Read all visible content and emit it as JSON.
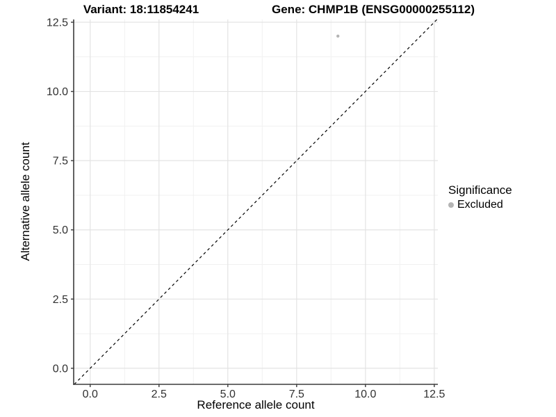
{
  "figure": {
    "title_left": "Variant: 18:11854241",
    "title_right": "Gene: CHMP1B (ENSG00000255112)"
  },
  "chart_data": {
    "type": "scatter",
    "title": "Variant: 18:11854241          Gene: CHMP1B (ENSG00000255112)",
    "xlabel": "Reference allele count",
    "ylabel": "Alternative allele count",
    "xlim": [
      -0.6,
      12.63
    ],
    "ylim": [
      -0.58,
      12.6
    ],
    "x_major_ticks": [
      0,
      2.5,
      5,
      7.5,
      10,
      12.5
    ],
    "x_tick_labels": [
      "0.0",
      "2.5",
      "5.0",
      "7.5",
      "10.0",
      "12.5"
    ],
    "y_major_ticks": [
      0,
      2.5,
      5,
      7.5,
      10,
      12.5
    ],
    "y_tick_labels": [
      "0.0",
      "2.5",
      "5.0",
      "7.5",
      "10.0",
      "12.5"
    ],
    "x_minor_ticks": [
      1.25,
      3.75,
      6.25,
      8.75,
      11.25
    ],
    "y_minor_ticks": [
      1.25,
      3.75,
      6.25,
      8.75,
      11.25
    ],
    "grid": true,
    "series": [
      {
        "name": "Excluded",
        "type": "scatter",
        "color": "#b4b4b4",
        "points": [
          {
            "x": 9,
            "y": 12
          }
        ]
      }
    ],
    "reference_line": {
      "type": "identity",
      "style": "dashed",
      "color": "#000000"
    },
    "legend": {
      "title": "Significance",
      "position": "right",
      "items": [
        {
          "label": "Excluded",
          "color": "#b4b4b4",
          "marker": "circle"
        }
      ]
    }
  },
  "style_colors": {
    "background": "#ffffff",
    "axis_line": "#3a3a3a",
    "tick_mark": "#3a3a3a",
    "tick_label": "#303030",
    "grid_major": "#e3e3e3",
    "grid_minor": "#f1f1f1",
    "point": "#b4b4b4"
  }
}
